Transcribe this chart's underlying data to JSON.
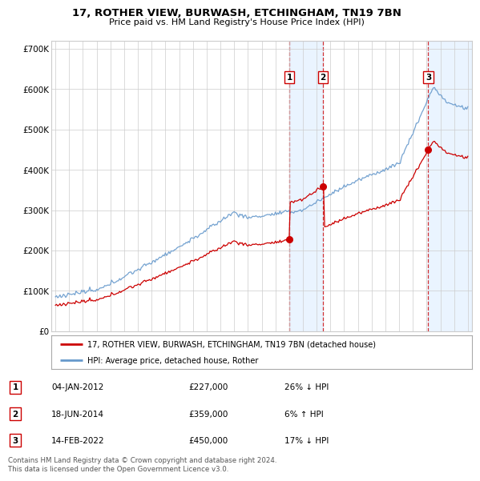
{
  "title": "17, ROTHER VIEW, BURWASH, ETCHINGHAM, TN19 7BN",
  "subtitle": "Price paid vs. HM Land Registry's House Price Index (HPI)",
  "sale_dates_num": [
    2012.01,
    2014.46,
    2022.12
  ],
  "sale_prices": [
    227000,
    359000,
    450000
  ],
  "sale_labels": [
    "1",
    "2",
    "3"
  ],
  "legend_line1": "17, ROTHER VIEW, BURWASH, ETCHINGHAM, TN19 7BN (detached house)",
  "legend_line2": "HPI: Average price, detached house, Rother",
  "table_data": [
    [
      "1",
      "04-JAN-2012",
      "£227,000",
      "26% ↓ HPI"
    ],
    [
      "2",
      "18-JUN-2014",
      "£359,000",
      "6% ↑ HPI"
    ],
    [
      "3",
      "14-FEB-2022",
      "£450,000",
      "17% ↓ HPI"
    ]
  ],
  "footnote": "Contains HM Land Registry data © Crown copyright and database right 2024.\nThis data is licensed under the Open Government Licence v3.0.",
  "ylim": [
    0,
    720000
  ],
  "yticks": [
    0,
    100000,
    200000,
    300000,
    400000,
    500000,
    600000,
    700000
  ],
  "ytick_labels": [
    "£0",
    "£100K",
    "£200K",
    "£300K",
    "£400K",
    "£500K",
    "£600K",
    "£700K"
  ],
  "price_line_color": "#cc0000",
  "hpi_line_color": "#6699cc",
  "shade_color": "#ddeeff",
  "dashed_line_color": "#cc0000",
  "grid_color": "#cccccc",
  "bg_color": "#ffffff"
}
